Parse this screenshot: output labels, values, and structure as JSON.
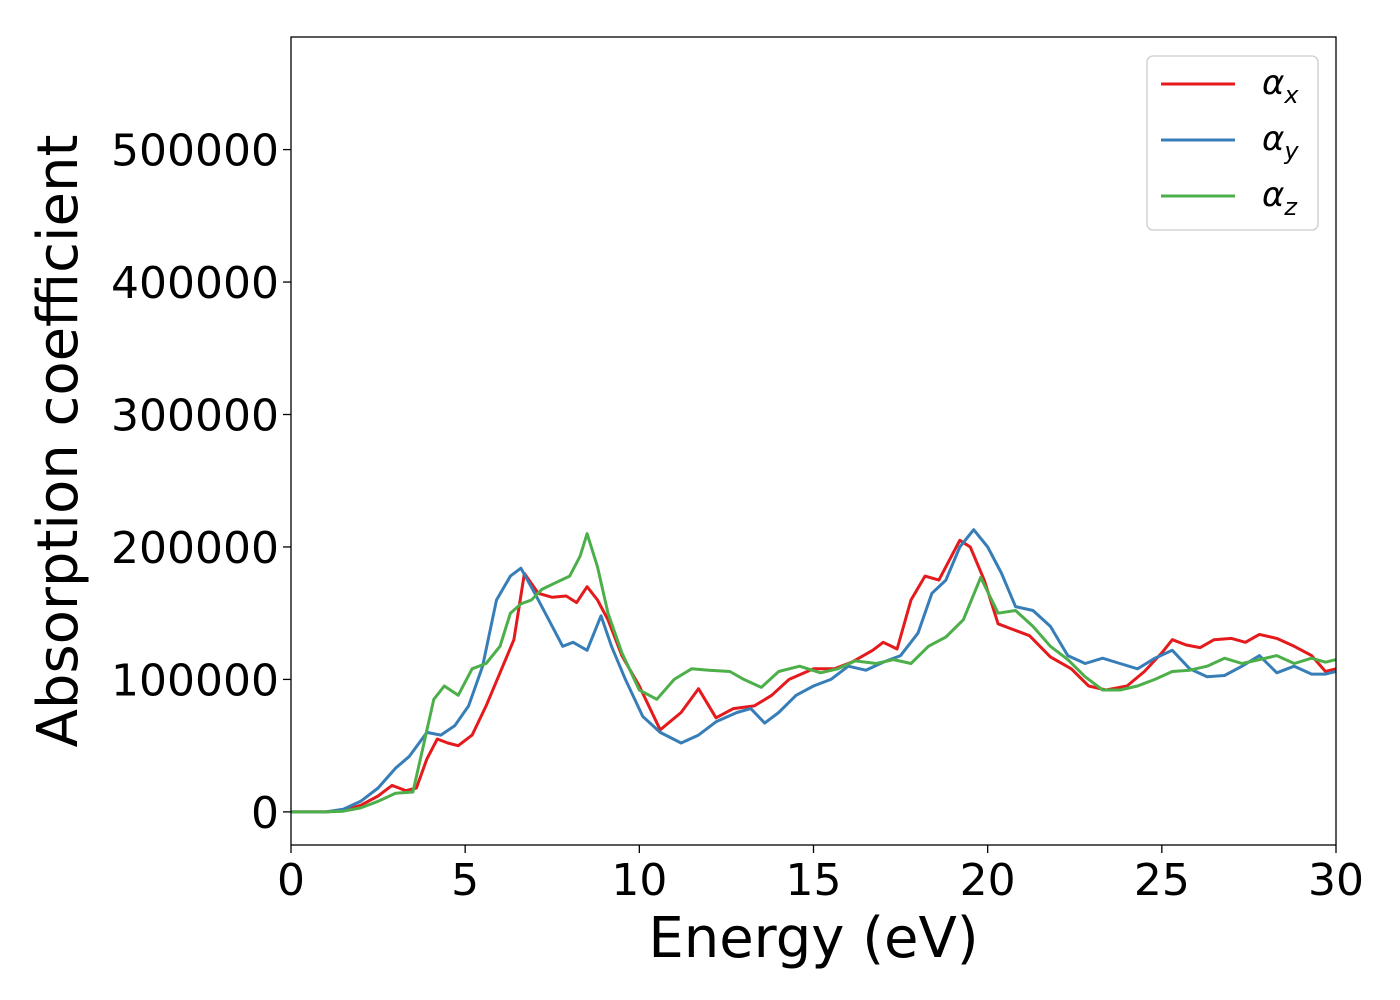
{
  "chart_data": {
    "type": "line",
    "xlabel": "Energy (eV)",
    "ylabel": "Absorption coefficient",
    "xlim": [
      0,
      30
    ],
    "ylim": [
      -25000,
      585000
    ],
    "xticks": [
      "0",
      "5",
      "10",
      "15",
      "20",
      "25",
      "30"
    ],
    "xtick_values": [
      0,
      5,
      10,
      15,
      20,
      25,
      30
    ],
    "yticks": [
      "0",
      "100000",
      "200000",
      "300000",
      "400000",
      "500000"
    ],
    "ytick_values": [
      0,
      100000,
      200000,
      300000,
      400000,
      500000
    ],
    "grid": false,
    "legend_position": "top-right",
    "series": [
      {
        "name": "α_x",
        "legend_base": "α",
        "legend_sub": "x",
        "color": "#e41a1c",
        "x": [
          0,
          1,
          1.5,
          2,
          2.5,
          2.9,
          3.3,
          3.6,
          3.9,
          4.2,
          4.5,
          4.8,
          5.2,
          5.6,
          6.0,
          6.4,
          6.7,
          7.1,
          7.5,
          7.9,
          8.2,
          8.5,
          8.8,
          9.1,
          9.5,
          10.0,
          10.6,
          11.2,
          11.7,
          12.2,
          12.7,
          13.3,
          13.8,
          14.3,
          15.0,
          15.6,
          16.1,
          16.7,
          17.0,
          17.4,
          17.8,
          18.2,
          18.6,
          19.2,
          19.5,
          19.9,
          20.3,
          20.7,
          21.2,
          21.8,
          22.4,
          22.9,
          23.4,
          24.0,
          24.5,
          25.0,
          25.3,
          25.7,
          26.1,
          26.5,
          27.0,
          27.4,
          27.8,
          28.3,
          28.8,
          29.3,
          29.7,
          30
        ],
        "y": [
          0,
          0,
          1000,
          5000,
          12000,
          20000,
          16000,
          18000,
          40000,
          55000,
          52000,
          50000,
          58000,
          80000,
          105000,
          130000,
          180000,
          165000,
          162000,
          163000,
          158000,
          170000,
          160000,
          145000,
          118000,
          95000,
          62000,
          75000,
          93000,
          71000,
          78000,
          80000,
          88000,
          100000,
          108000,
          108000,
          113000,
          122000,
          128000,
          123000,
          160000,
          178000,
          175000,
          205000,
          200000,
          175000,
          142000,
          138000,
          133000,
          117000,
          108000,
          95000,
          92000,
          95000,
          106000,
          120000,
          130000,
          126000,
          124000,
          130000,
          131000,
          128000,
          134000,
          131000,
          125000,
          118000,
          106000,
          108000
        ]
      },
      {
        "name": "α_y",
        "legend_base": "α",
        "legend_sub": "y",
        "color": "#377eb8",
        "x": [
          0,
          1,
          1.5,
          2,
          2.5,
          3.0,
          3.4,
          3.9,
          4.3,
          4.7,
          5.1,
          5.5,
          5.9,
          6.3,
          6.6,
          7.0,
          7.4,
          7.8,
          8.1,
          8.5,
          8.9,
          9.2,
          9.6,
          10.1,
          10.6,
          11.2,
          11.7,
          12.2,
          12.8,
          13.2,
          13.6,
          14.0,
          14.5,
          15.0,
          15.5,
          16.0,
          16.5,
          17.0,
          17.5,
          18.0,
          18.4,
          18.8,
          19.2,
          19.6,
          20.0,
          20.4,
          20.8,
          21.3,
          21.8,
          22.3,
          22.8,
          23.3,
          23.8,
          24.3,
          24.8,
          25.3,
          25.8,
          26.3,
          26.8,
          27.3,
          27.8,
          28.3,
          28.8,
          29.3,
          29.7,
          30
        ],
        "y": [
          0,
          0,
          2000,
          8000,
          18000,
          33000,
          42000,
          60000,
          58000,
          65000,
          80000,
          110000,
          160000,
          178000,
          184000,
          165000,
          145000,
          125000,
          128000,
          122000,
          148000,
          125000,
          100000,
          72000,
          60000,
          52000,
          58000,
          68000,
          75000,
          78000,
          67000,
          75000,
          88000,
          95000,
          100000,
          110000,
          107000,
          113000,
          118000,
          135000,
          165000,
          175000,
          200000,
          213000,
          200000,
          180000,
          155000,
          152000,
          140000,
          118000,
          112000,
          116000,
          112000,
          108000,
          116000,
          122000,
          108000,
          102000,
          103000,
          110000,
          118000,
          105000,
          110000,
          104000,
          104000,
          106000
        ]
      },
      {
        "name": "α_z",
        "legend_base": "α",
        "legend_sub": "z",
        "color": "#4daf4a",
        "x": [
          0,
          1,
          1.5,
          2,
          2.5,
          3.0,
          3.5,
          3.8,
          4.1,
          4.4,
          4.8,
          5.2,
          5.6,
          6.0,
          6.3,
          6.6,
          6.9,
          7.2,
          7.6,
          8.0,
          8.3,
          8.5,
          8.8,
          9.1,
          9.5,
          10.0,
          10.5,
          11.0,
          11.5,
          12.0,
          12.6,
          13.0,
          13.5,
          14.0,
          14.6,
          15.2,
          15.7,
          16.2,
          16.8,
          17.3,
          17.8,
          18.3,
          18.8,
          19.3,
          19.8,
          20.3,
          20.8,
          21.3,
          21.8,
          22.3,
          22.8,
          23.3,
          23.8,
          24.3,
          24.8,
          25.3,
          25.8,
          26.3,
          26.8,
          27.3,
          27.8,
          28.3,
          28.8,
          29.3,
          29.7,
          30
        ],
        "y": [
          0,
          0,
          500,
          3000,
          8000,
          14000,
          15000,
          50000,
          85000,
          95000,
          88000,
          108000,
          112000,
          125000,
          150000,
          157000,
          160000,
          168000,
          173000,
          178000,
          193000,
          210000,
          185000,
          150000,
          120000,
          92000,
          85000,
          100000,
          108000,
          107000,
          106000,
          100000,
          94000,
          106000,
          110000,
          105000,
          108000,
          114000,
          112000,
          115000,
          112000,
          125000,
          132000,
          145000,
          177000,
          150000,
          152000,
          140000,
          125000,
          115000,
          102000,
          92000,
          92000,
          95000,
          100000,
          106000,
          107000,
          110000,
          116000,
          112000,
          115000,
          118000,
          112000,
          116000,
          113000,
          115000
        ]
      }
    ]
  }
}
